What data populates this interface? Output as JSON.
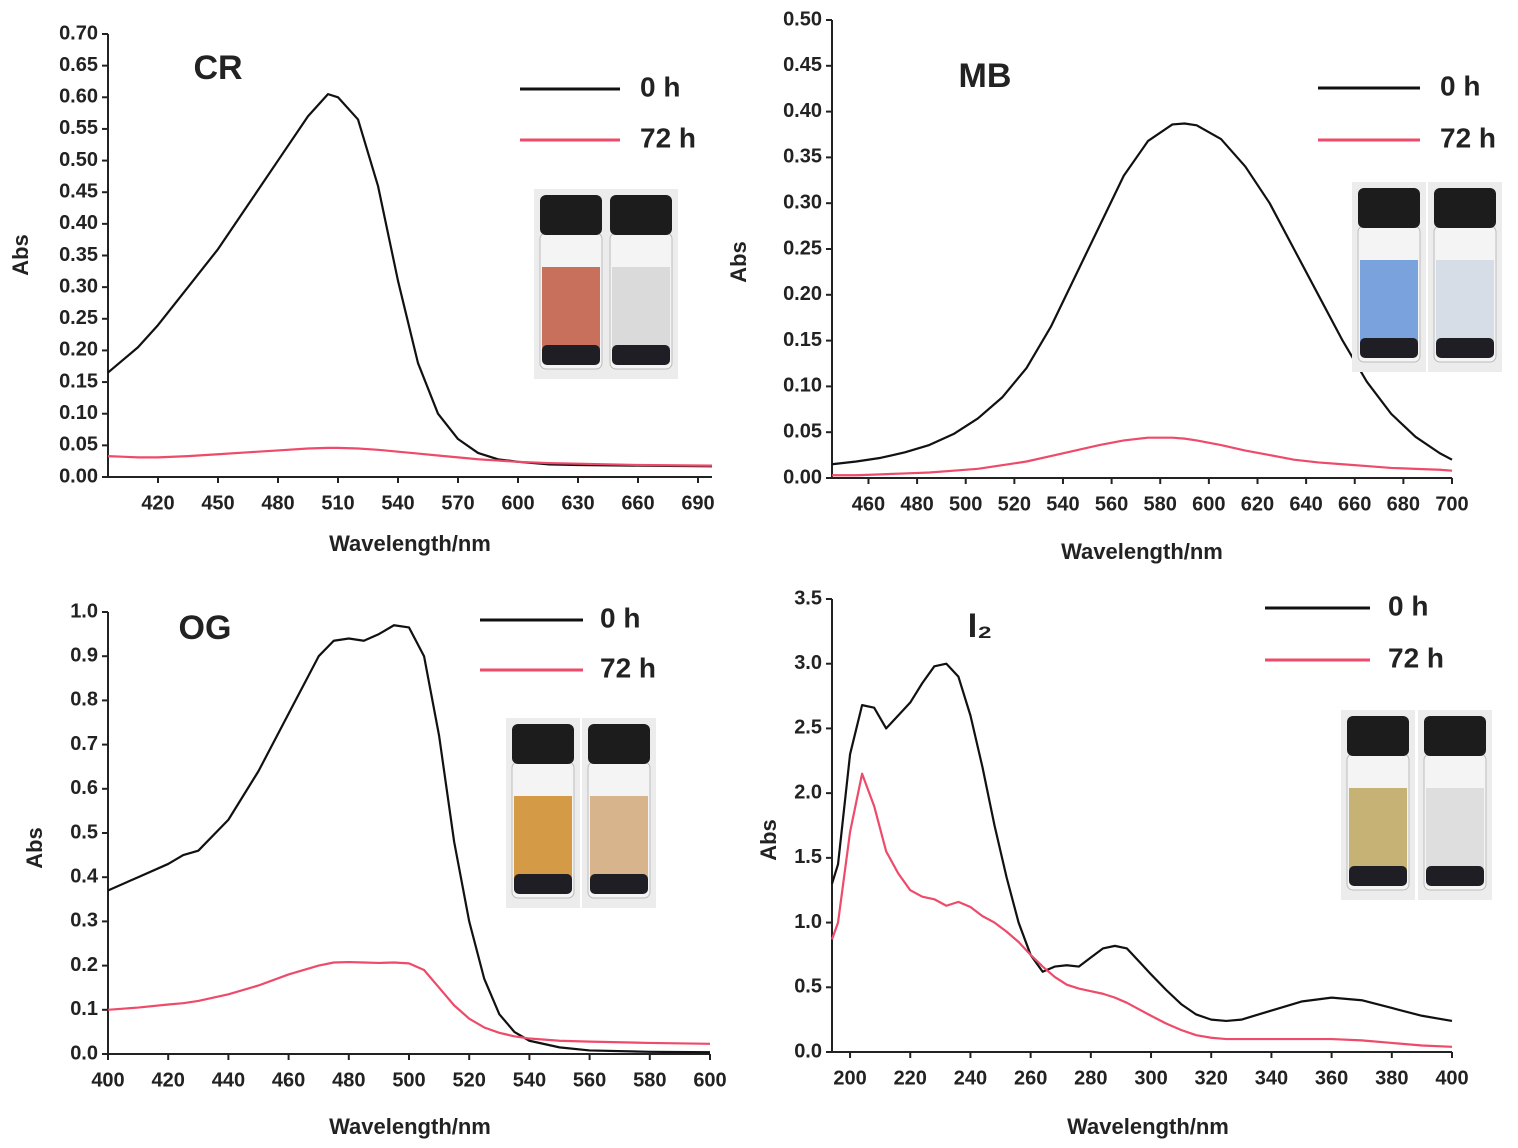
{
  "chart_data": [
    {
      "type": "line",
      "title": "CR",
      "xlabel": "Wavelength/nm",
      "ylabel": "Abs",
      "x": [
        395,
        410,
        420,
        435,
        450,
        465,
        480,
        495,
        505,
        510,
        520,
        530,
        540,
        550,
        560,
        570,
        580,
        590,
        600,
        615,
        630,
        660,
        697
      ],
      "series": [
        {
          "name": "0 h",
          "color": "#111111",
          "values": [
            0.165,
            0.205,
            0.24,
            0.3,
            0.36,
            0.43,
            0.5,
            0.57,
            0.605,
            0.6,
            0.565,
            0.46,
            0.31,
            0.18,
            0.1,
            0.06,
            0.038,
            0.028,
            0.024,
            0.02,
            0.019,
            0.018,
            0.017
          ]
        },
        {
          "name": "72 h",
          "color": "#ee4a6a",
          "values": [
            0.033,
            0.031,
            0.031,
            0.033,
            0.036,
            0.039,
            0.042,
            0.045,
            0.046,
            0.046,
            0.045,
            0.043,
            0.04,
            0.037,
            0.034,
            0.031,
            0.028,
            0.026,
            0.024,
            0.022,
            0.021,
            0.019,
            0.018
          ]
        }
      ],
      "xlim": [
        395,
        697
      ],
      "xticks": [
        420,
        450,
        480,
        510,
        540,
        570,
        600,
        630,
        660,
        690
      ],
      "ylim": [
        0,
        0.7
      ],
      "yticks": [
        {
          "value": 0,
          "label": "0.00"
        },
        0.05,
        {
          "value": 0.1,
          "label": "0.10"
        },
        0.15,
        {
          "value": 0.2,
          "label": "0.20"
        },
        0.25,
        {
          "value": 0.3,
          "label": "0.30"
        },
        0.35,
        {
          "value": 0.4,
          "label": "0.40"
        },
        0.45,
        {
          "value": 0.5,
          "label": "0.50"
        },
        0.55,
        {
          "value": 0.6,
          "label": "0.60"
        },
        0.65,
        {
          "value": 0.7,
          "label": "0.70"
        }
      ]
    },
    {
      "type": "line",
      "title": "MB",
      "xlabel": "Wavelength/nm",
      "ylabel": "Abs",
      "x": [
        445,
        455,
        465,
        475,
        485,
        495,
        505,
        515,
        525,
        535,
        545,
        555,
        565,
        575,
        585,
        590,
        595,
        605,
        615,
        625,
        635,
        645,
        655,
        665,
        675,
        685,
        695,
        700
      ],
      "series": [
        {
          "name": "0 h",
          "color": "#111111",
          "values": [
            0.015,
            0.018,
            0.022,
            0.028,
            0.036,
            0.048,
            0.065,
            0.088,
            0.12,
            0.165,
            0.22,
            0.275,
            0.33,
            0.368,
            0.386,
            0.387,
            0.385,
            0.37,
            0.34,
            0.3,
            0.25,
            0.2,
            0.15,
            0.105,
            0.07,
            0.045,
            0.027,
            0.02
          ]
        },
        {
          "name": "72 h",
          "color": "#ee4a6a",
          "values": [
            0.003,
            0.003,
            0.004,
            0.005,
            0.006,
            0.008,
            0.01,
            0.014,
            0.018,
            0.024,
            0.03,
            0.036,
            0.041,
            0.044,
            0.044,
            0.043,
            0.041,
            0.036,
            0.03,
            0.025,
            0.02,
            0.017,
            0.015,
            0.013,
            0.011,
            0.01,
            0.009,
            0.008
          ]
        }
      ],
      "xlim": [
        445,
        700
      ],
      "xticks": [
        460,
        480,
        500,
        520,
        540,
        560,
        580,
        600,
        620,
        640,
        660,
        680,
        700
      ],
      "ylim": [
        0,
        0.5
      ],
      "yticks": [
        {
          "value": 0,
          "label": "0.00"
        },
        0.05,
        {
          "value": 0.1,
          "label": "0.10"
        },
        0.15,
        {
          "value": 0.2,
          "label": "0.20"
        },
        0.25,
        {
          "value": 0.3,
          "label": "0.30"
        },
        0.35,
        {
          "value": 0.4,
          "label": "0.40"
        },
        0.45,
        {
          "value": 0.5,
          "label": "0.50"
        }
      ]
    },
    {
      "type": "line",
      "title": "OG",
      "xlabel": "Wavelength/nm",
      "ylabel": "Abs",
      "x": [
        400,
        410,
        420,
        425,
        430,
        440,
        450,
        460,
        470,
        475,
        480,
        485,
        490,
        495,
        500,
        505,
        510,
        515,
        520,
        525,
        530,
        535,
        540,
        550,
        560,
        580,
        600
      ],
      "series": [
        {
          "name": "0 h",
          "color": "#111111",
          "values": [
            0.37,
            0.4,
            0.43,
            0.45,
            0.46,
            0.53,
            0.64,
            0.77,
            0.9,
            0.935,
            0.94,
            0.935,
            0.95,
            0.97,
            0.965,
            0.9,
            0.72,
            0.48,
            0.3,
            0.17,
            0.09,
            0.05,
            0.03,
            0.015,
            0.008,
            0.005,
            0.004
          ]
        },
        {
          "name": "72 h",
          "color": "#ee4a6a",
          "values": [
            0.1,
            0.105,
            0.112,
            0.115,
            0.12,
            0.135,
            0.155,
            0.18,
            0.2,
            0.207,
            0.208,
            0.207,
            0.206,
            0.207,
            0.205,
            0.19,
            0.15,
            0.11,
            0.08,
            0.06,
            0.048,
            0.04,
            0.035,
            0.03,
            0.028,
            0.025,
            0.023
          ]
        }
      ],
      "xlim": [
        400,
        600
      ],
      "xticks": [
        400,
        420,
        440,
        460,
        480,
        500,
        520,
        540,
        560,
        580,
        600
      ],
      "ylim": [
        0,
        1
      ],
      "yticks": [
        {
          "value": 0,
          "label": "0.0"
        },
        0.1,
        0.2,
        0.3,
        0.4,
        0.5,
        0.6,
        0.7,
        0.8,
        0.9,
        {
          "value": 1,
          "label": "1.0"
        }
      ]
    },
    {
      "type": "line",
      "title": "I₂",
      "xlabel": "Wavelength/nm",
      "ylabel": "Abs",
      "x": [
        194,
        196,
        200,
        204,
        208,
        212,
        216,
        220,
        224,
        228,
        232,
        236,
        240,
        244,
        248,
        252,
        256,
        260,
        264,
        268,
        272,
        276,
        280,
        284,
        288,
        292,
        296,
        300,
        305,
        310,
        315,
        320,
        325,
        330,
        340,
        350,
        360,
        370,
        380,
        390,
        400
      ],
      "series": [
        {
          "name": "0 h",
          "color": "#111111",
          "values": [
            1.3,
            1.45,
            2.3,
            2.68,
            2.66,
            2.5,
            2.6,
            2.7,
            2.85,
            2.98,
            3.0,
            2.9,
            2.6,
            2.2,
            1.75,
            1.35,
            1.0,
            0.75,
            0.62,
            0.66,
            0.67,
            0.66,
            0.73,
            0.8,
            0.82,
            0.8,
            0.7,
            0.6,
            0.48,
            0.37,
            0.29,
            0.25,
            0.24,
            0.25,
            0.32,
            0.39,
            0.42,
            0.4,
            0.34,
            0.28,
            0.24
          ]
        },
        {
          "name": "72 h",
          "color": "#ee4a6a",
          "values": [
            0.87,
            1.0,
            1.7,
            2.15,
            1.9,
            1.55,
            1.38,
            1.25,
            1.2,
            1.18,
            1.13,
            1.16,
            1.12,
            1.05,
            1.0,
            0.93,
            0.85,
            0.75,
            0.66,
            0.58,
            0.52,
            0.49,
            0.47,
            0.45,
            0.42,
            0.38,
            0.33,
            0.28,
            0.22,
            0.17,
            0.13,
            0.11,
            0.1,
            0.1,
            0.1,
            0.1,
            0.1,
            0.09,
            0.07,
            0.05,
            0.04
          ]
        }
      ],
      "xlim": [
        194,
        400
      ],
      "xticks": [
        200,
        220,
        240,
        260,
        280,
        300,
        320,
        340,
        360,
        380,
        400
      ],
      "ylim": [
        0,
        3.5
      ],
      "yticks": [
        {
          "value": 0,
          "label": "0.0"
        },
        0.5,
        {
          "value": 1,
          "label": "1.0"
        },
        1.5,
        {
          "value": 2,
          "label": "2.0"
        },
        2.5,
        {
          "value": 3,
          "label": "3.0"
        },
        3.5
      ]
    }
  ]
}
